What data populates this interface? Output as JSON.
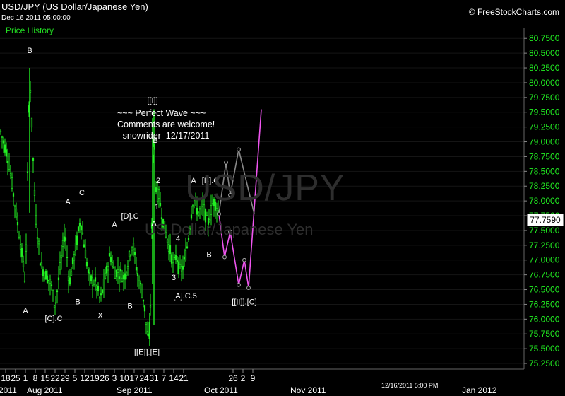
{
  "header": {
    "title": "USD/JPY (US Dollar/Japanese Yen)",
    "datetime": "Dec 16 2011 05:00:00",
    "panel_label": "Price History",
    "brand": "© FreeStockCharts.com"
  },
  "annotation": {
    "lines": [
      "~~~ Perfect Wave ~~~",
      "Comments are welcome!",
      "- snowrider  12/17/2011"
    ]
  },
  "watermark": {
    "symbol": "USD/JPY",
    "name": "US Dollar/Japanese Yen"
  },
  "last_price": "77.7590",
  "timestamp_label": "12/16/2011 5:00 PM",
  "colors": {
    "up_candle": "#22ee22",
    "projection_pink": "#ee55ee",
    "projection_gray": "#888888",
    "background": "#000000"
  },
  "chart_data": {
    "type": "candlestick",
    "title": "USD/JPY (US Dollar/Japanese Yen)",
    "ylim": [
      75.25,
      80.75
    ],
    "y_ticks": [
      "75.2500",
      "75.5000",
      "75.7500",
      "76.0000",
      "76.2500",
      "76.5000",
      "76.7500",
      "77.0000",
      "77.2500",
      "77.5000",
      "77.7500",
      "78.0000",
      "78.2500",
      "78.5000",
      "78.7500",
      "79.0000",
      "79.2500",
      "79.5000",
      "79.7500",
      "80.0000",
      "80.2500",
      "80.5000",
      "80.7500"
    ],
    "x_ticks": [
      "18",
      "25",
      "1",
      "8",
      "15",
      "22",
      "29",
      "5",
      "12",
      "19",
      "26",
      "3",
      "10",
      "17",
      "24",
      "31",
      "7",
      "14",
      "21",
      "26",
      "2",
      "9"
    ],
    "x_month_labels": [
      "2011",
      "Aug 2011",
      "Sep 2011",
      "Oct 2011",
      "Nov 2011",
      "Jan 2012"
    ],
    "price_anchors": [
      {
        "date": "2011-07-13",
        "price": 79.3
      },
      {
        "date": "2011-07-20",
        "price": 78.7
      },
      {
        "date": "2011-07-26",
        "price": 77.7
      },
      {
        "date": "2011-07-29",
        "price": 77.2
      },
      {
        "date": "2011-08-01",
        "price": 76.6
      },
      {
        "date": "2011-08-04",
        "price": 80.2
      },
      {
        "date": "2011-08-08",
        "price": 77.8
      },
      {
        "date": "2011-08-12",
        "price": 76.9
      },
      {
        "date": "2011-08-19",
        "price": 76.6
      },
      {
        "date": "2011-08-22",
        "price": 76.2
      },
      {
        "date": "2011-08-29",
        "price": 77.5
      },
      {
        "date": "2011-09-01",
        "price": 76.6
      },
      {
        "date": "2011-09-07",
        "price": 77.4
      },
      {
        "date": "2011-09-09",
        "price": 77.7
      },
      {
        "date": "2011-09-15",
        "price": 76.7
      },
      {
        "date": "2011-09-20",
        "price": 76.6
      },
      {
        "date": "2011-09-23",
        "price": 76.3
      },
      {
        "date": "2011-09-30",
        "price": 77.1
      },
      {
        "date": "2011-10-03",
        "price": 76.8
      },
      {
        "date": "2011-10-06",
        "price": 76.8
      },
      {
        "date": "2011-10-10",
        "price": 76.7
      },
      {
        "date": "2011-10-13",
        "price": 77.0
      },
      {
        "date": "2011-10-16",
        "price": 77.3
      },
      {
        "date": "2011-10-19",
        "price": 76.8
      },
      {
        "date": "2011-10-24",
        "price": 76.3
      },
      {
        "date": "2011-10-26",
        "price": 75.8
      },
      {
        "date": "2011-10-28",
        "price": 75.6
      },
      {
        "date": "2011-10-31",
        "price": 79.5
      },
      {
        "date": "2011-11-01",
        "price": 78.5
      },
      {
        "date": "2011-11-02",
        "price": 78.0
      },
      {
        "date": "2011-11-03",
        "price": 78.2
      },
      {
        "date": "2011-11-04",
        "price": 78.0
      },
      {
        "date": "2011-11-07",
        "price": 77.6
      },
      {
        "date": "2011-11-10",
        "price": 77.3
      },
      {
        "date": "2011-11-14",
        "price": 76.9
      },
      {
        "date": "2011-11-16",
        "price": 77.1
      },
      {
        "date": "2011-11-18",
        "price": 76.8
      },
      {
        "date": "2011-11-21",
        "price": 76.9
      },
      {
        "date": "2011-11-24",
        "price": 77.3
      },
      {
        "date": "2011-11-28",
        "price": 78.1
      },
      {
        "date": "2011-12-01",
        "price": 77.8
      },
      {
        "date": "2011-12-05",
        "price": 77.9
      },
      {
        "date": "2011-12-08",
        "price": 77.6
      },
      {
        "date": "2011-12-12",
        "price": 78.0
      },
      {
        "date": "2011-12-15",
        "price": 77.9
      },
      {
        "date": "2011-12-16",
        "price": 77.76
      }
    ],
    "projections": [
      {
        "name": "pink",
        "points": [
          {
            "date": "2011-12-16",
            "price": 77.78
          },
          {
            "date": "2011-12-20",
            "price": 77.05
          },
          {
            "date": "2011-12-24",
            "price": 77.48
          },
          {
            "date": "2011-12-30",
            "price": 76.58
          },
          {
            "date": "2012-01-03",
            "price": 77.0
          },
          {
            "date": "2012-01-06",
            "price": 76.53
          },
          {
            "date": "2012-01-15",
            "price": 79.55
          }
        ]
      },
      {
        "name": "gray",
        "points": [
          {
            "date": "2011-12-16",
            "price": 77.78
          },
          {
            "date": "2011-12-21",
            "price": 78.65
          },
          {
            "date": "2011-12-24",
            "price": 78.1
          },
          {
            "date": "2011-12-30",
            "price": 78.87
          },
          {
            "date": "2012-01-10",
            "price": 77.78
          }
        ]
      }
    ],
    "wave_labels": [
      {
        "text": "B",
        "date": "2011-08-04",
        "price": 80.5
      },
      {
        "text": "A",
        "date": "2011-08-01",
        "price": 76.1
      },
      {
        "text": "[C].C",
        "date": "2011-08-21",
        "price": 75.97
      },
      {
        "text": "A",
        "date": "2011-08-31",
        "price": 77.94
      },
      {
        "text": "B",
        "date": "2011-09-07",
        "price": 76.25
      },
      {
        "text": "C",
        "date": "2011-09-10",
        "price": 78.1
      },
      {
        "text": "X",
        "date": "2011-09-23",
        "price": 76.02
      },
      {
        "text": "A",
        "date": "2011-10-03",
        "price": 77.56
      },
      {
        "text": "[D].C",
        "date": "2011-10-14",
        "price": 77.7
      },
      {
        "text": "B",
        "date": "2011-10-14",
        "price": 76.18
      },
      {
        "text": "[[I]]",
        "date": "2011-10-30",
        "price": 79.66
      },
      {
        "text": "B",
        "date": "2011-11-01",
        "price": 78.98
      },
      {
        "text": "A",
        "date": "2011-10-31",
        "price": 77.58
      },
      {
        "text": "[[E]].[E]",
        "date": "2011-10-26",
        "price": 75.4
      },
      {
        "text": "2",
        "date": "2011-11-03",
        "price": 78.3
      },
      {
        "text": "1",
        "date": "2011-11-02",
        "price": 77.86
      },
      {
        "text": "4",
        "date": "2011-11-17",
        "price": 77.32
      },
      {
        "text": "3",
        "date": "2011-11-14",
        "price": 76.66
      },
      {
        "text": "[A].C.5",
        "date": "2011-11-22",
        "price": 76.35
      },
      {
        "text": "A",
        "date": "2011-11-28",
        "price": 78.3
      },
      {
        "text": "[B].C",
        "date": "2011-12-10",
        "price": 78.3
      },
      {
        "text": "B",
        "date": "2011-12-09",
        "price": 77.05
      },
      {
        "text": "[[II]].[C]",
        "date": "2012-01-03",
        "price": 76.25
      }
    ]
  }
}
